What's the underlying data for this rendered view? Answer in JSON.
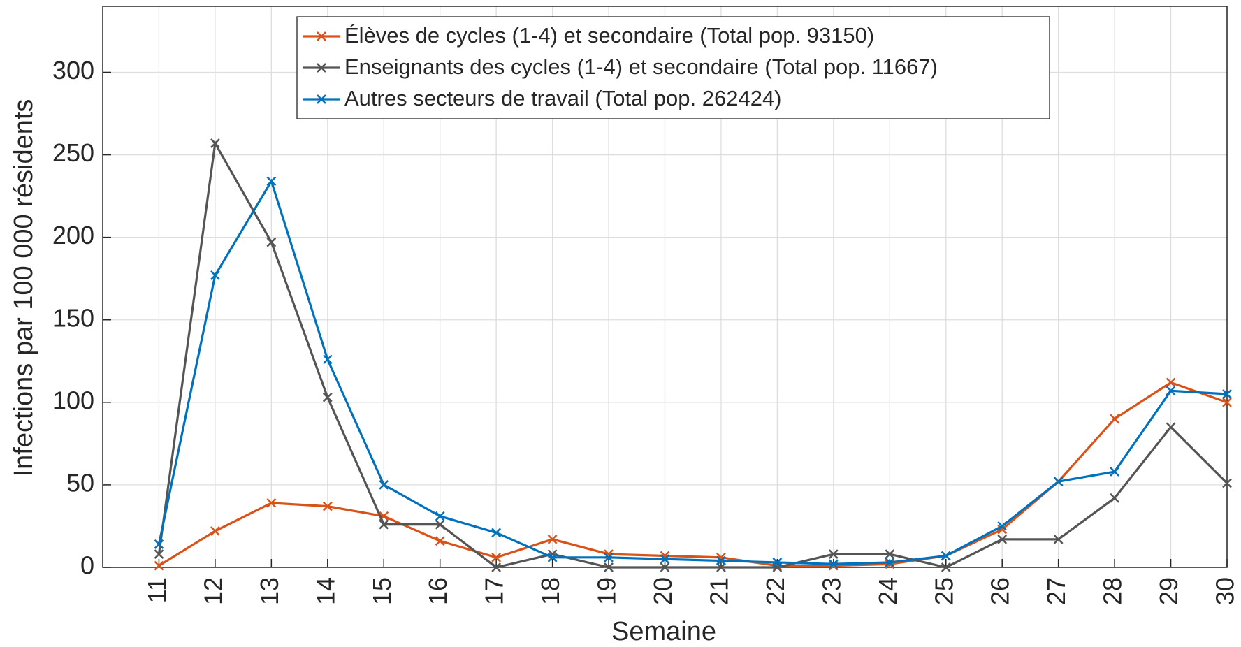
{
  "chart_data": {
    "type": "line",
    "xlabel": "Semaine",
    "ylabel": "Infections par 100 000 résidents",
    "x": [
      11,
      12,
      13,
      14,
      15,
      16,
      17,
      18,
      19,
      20,
      21,
      22,
      23,
      24,
      25,
      26,
      27,
      28,
      29,
      30
    ],
    "series": [
      {
        "name": "Élèves de cycles (1-4) et secondaire (Total pop. 93150)",
        "color": "#d95319",
        "values": [
          1,
          22,
          39,
          37,
          31,
          16,
          6,
          17,
          8,
          7,
          6,
          1,
          1,
          2,
          7,
          23,
          52,
          90,
          112,
          100
        ]
      },
      {
        "name": "Enseignants des cycles (1-4) et secondaire (Total pop. 11667)",
        "color": "#555555",
        "values": [
          8,
          257,
          197,
          103,
          26,
          26,
          0,
          8,
          0,
          0,
          0,
          0,
          8,
          8,
          0,
          17,
          17,
          42,
          85,
          51
        ]
      },
      {
        "name": "Autres secteurs de travail (Total pop. 262424)",
        "color": "#0072bd",
        "values": [
          14,
          177,
          234,
          126,
          50,
          31,
          21,
          6,
          6,
          5,
          4,
          3,
          2,
          3,
          7,
          25,
          52,
          58,
          107,
          105
        ]
      }
    ],
    "xlim": [
      10,
      30
    ],
    "xticks": [
      11,
      12,
      13,
      14,
      15,
      16,
      17,
      18,
      19,
      20,
      21,
      22,
      23,
      24,
      25,
      26,
      27,
      28,
      29,
      30
    ],
    "ylim": [
      0,
      340
    ],
    "yticks": [
      0,
      50,
      100,
      150,
      200,
      250,
      300
    ],
    "grid": true,
    "legend": "north"
  }
}
